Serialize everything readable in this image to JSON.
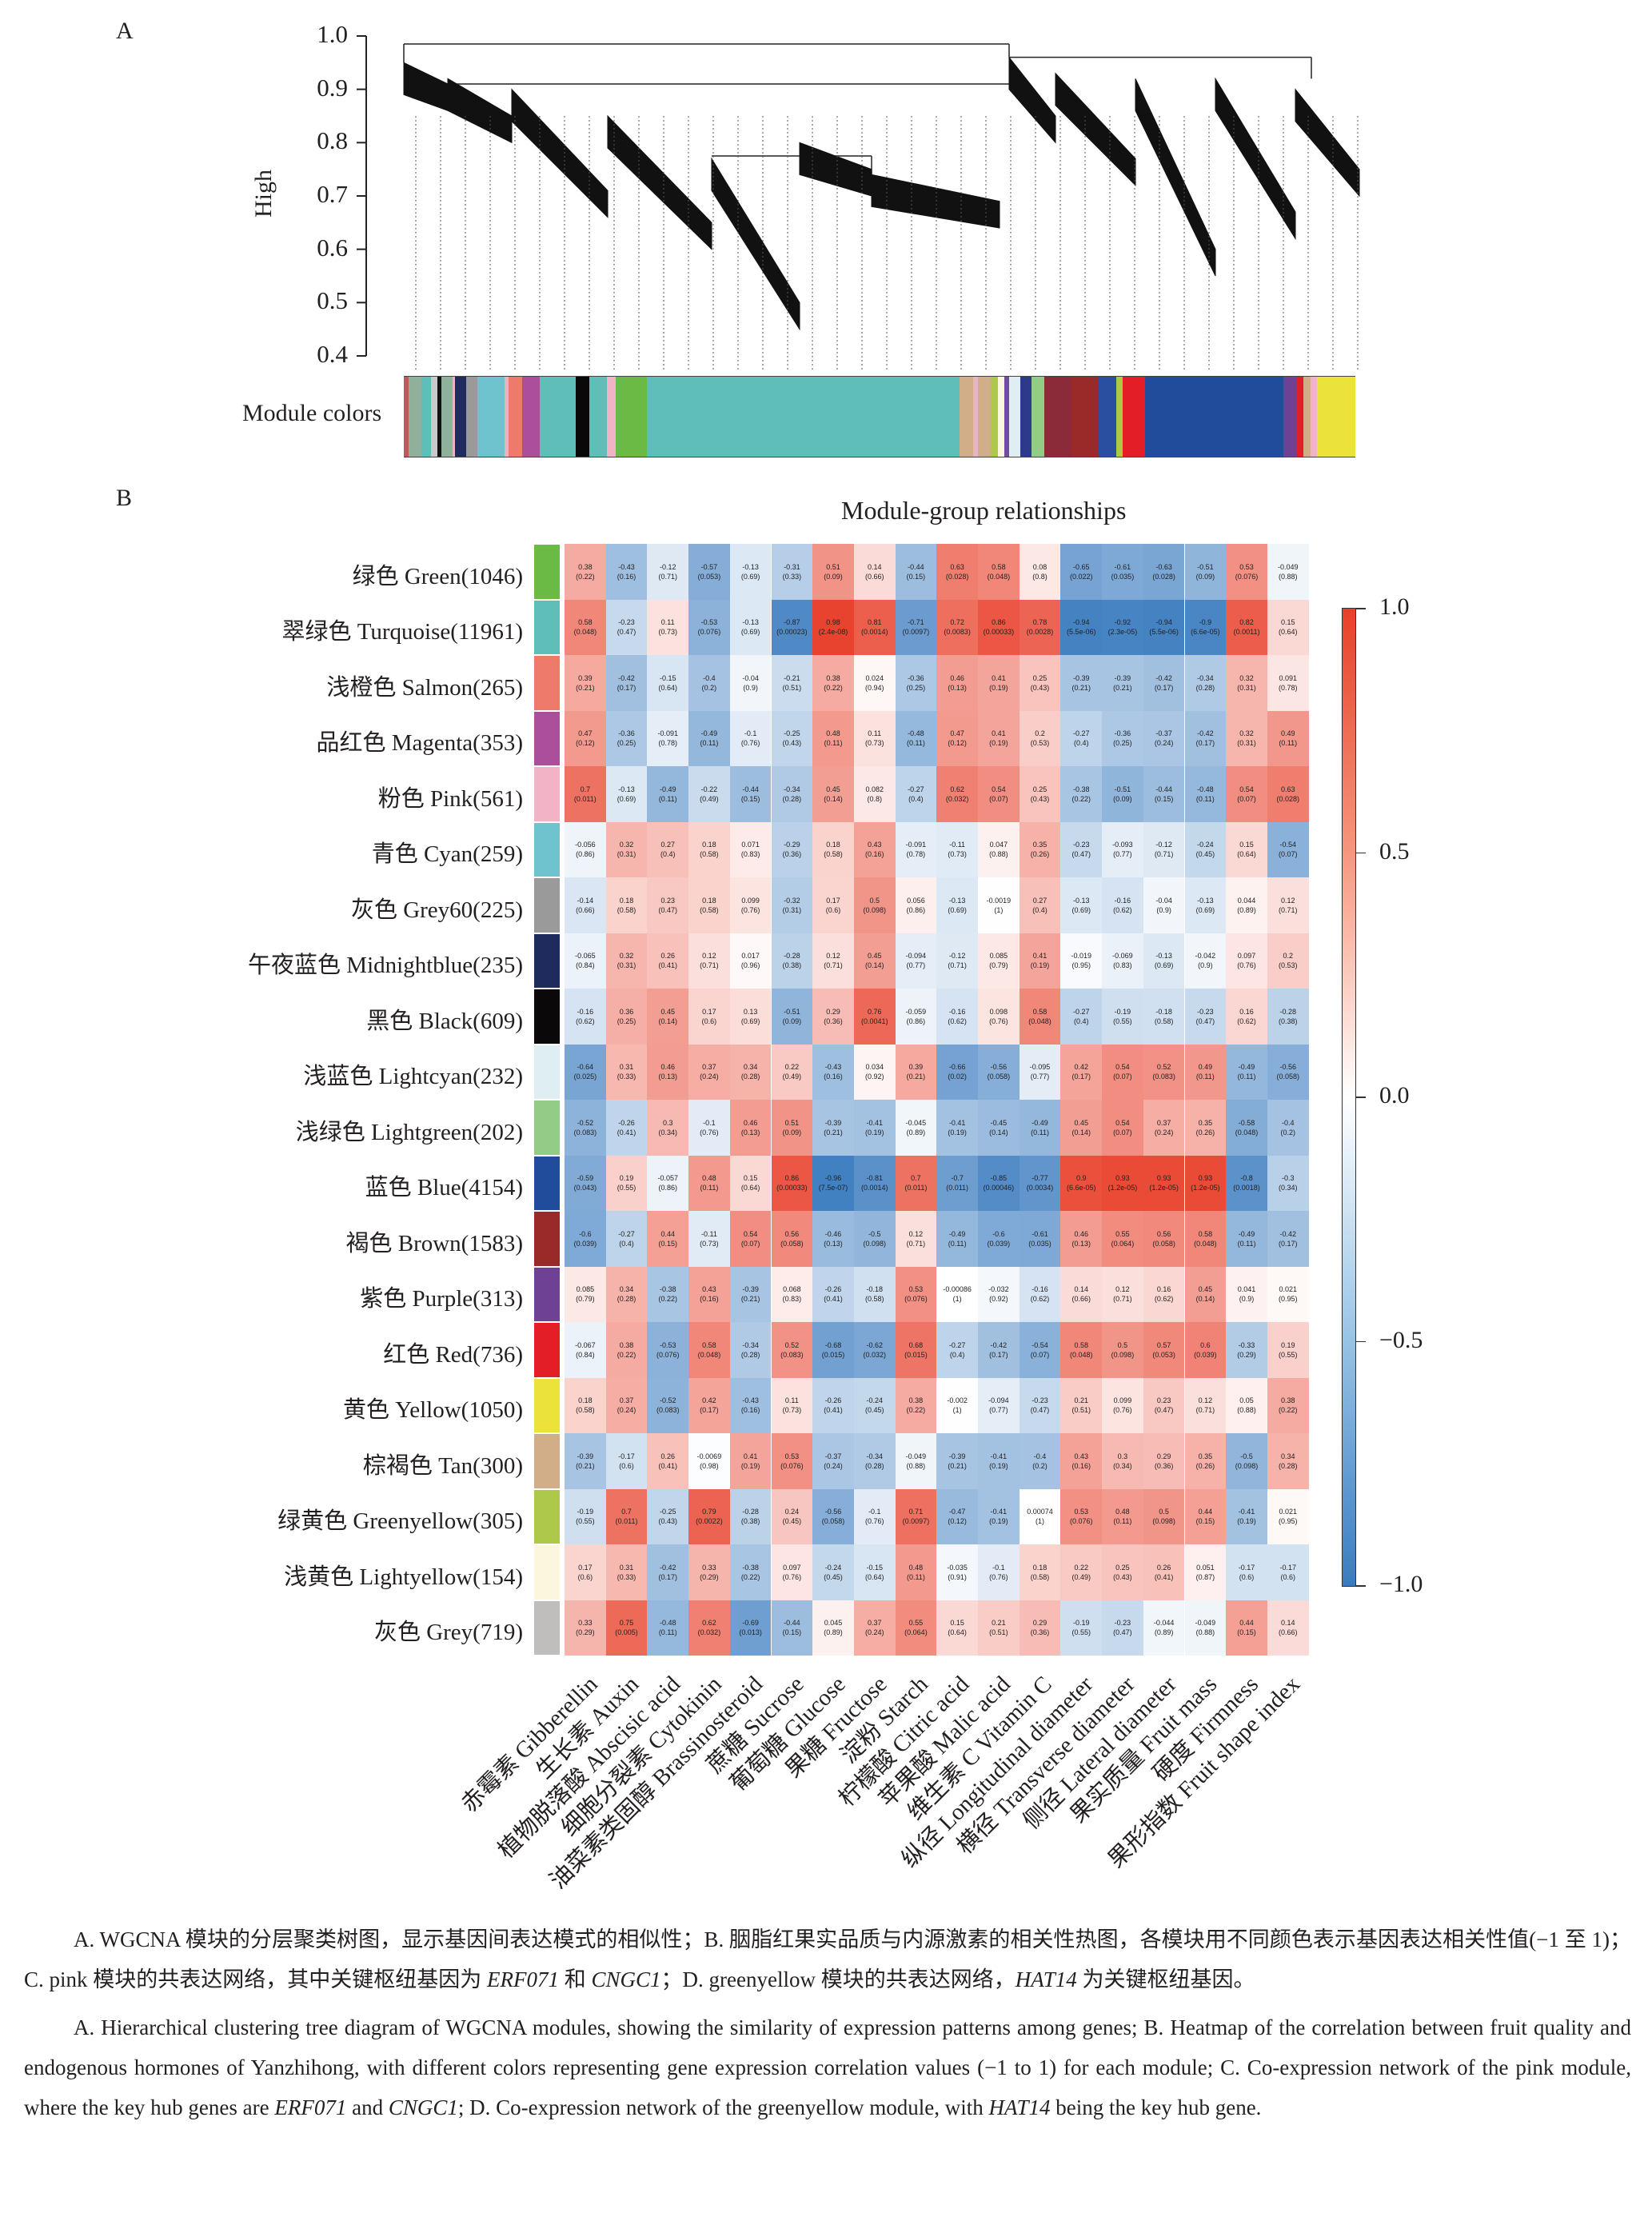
{
  "panel_a": {
    "letter": "A",
    "ylabel": "High",
    "yticks": [
      "1.0",
      "0.9",
      "0.8",
      "0.7",
      "0.6",
      "0.5",
      "0.4"
    ],
    "module_colors_label": "Module colors",
    "module_color_strip": [
      "#c0595a",
      "#8fb09a",
      "#5fbfb8",
      "#c9c9c9",
      "#111111",
      "#8fb09a",
      "#e8b4c4",
      "#1f2b5c",
      "#9a9a9a",
      "#6ec3cf",
      "#e8b4c4",
      "#ee7a6c",
      "#ac4f9a",
      "#5fbfb8",
      "#0a0808",
      "#5fbfb8",
      "#f2b3c6",
      "#6bba45",
      "#5fbfb8",
      "#d1ad88",
      "#e8b4c4",
      "#d1ad88",
      "#aec94a",
      "#fbf7df",
      "#6f4ca0",
      "#dfeef2",
      "#2d3a8c",
      "#93cc86",
      "#8b2a38",
      "#9a2a2a",
      "#2a4ea0",
      "#aec94a",
      "#e41e26",
      "#214c9b",
      "#6f4195",
      "#e41e26",
      "#d1ad88",
      "#f2b3c6",
      "#ebe33a"
    ],
    "module_color_weights": [
      2,
      6,
      4,
      3,
      2,
      5,
      1,
      5,
      5,
      12,
      2,
      6,
      8,
      16,
      6,
      8,
      4,
      14,
      140,
      6,
      2,
      6,
      3,
      3,
      2,
      5,
      5,
      6,
      12,
      12,
      8,
      3,
      10,
      62,
      6,
      3,
      3,
      3,
      17
    ]
  },
  "panel_b": {
    "letter": "B",
    "colorbar": {
      "ticks": [
        "1.0",
        "0.5",
        "0.0",
        "−0.5",
        "−1.0"
      ],
      "range": [
        -1,
        1
      ],
      "neg_color": "#3a7bbf",
      "zero_color": "#ffffff",
      "pos_color": "#e8402a"
    }
  },
  "chart_data": {
    "type": "heatmap",
    "title": "Module-group relationships",
    "xlabel": "",
    "ylabel": "",
    "value_range": [
      -1,
      1
    ],
    "columns": [
      "赤霉素 Gibberellin",
      "生长素 Auxin",
      "植物脱落酸 Abscisic acid",
      "细胞分裂素 Cytokinin",
      "油菜素类固醇 Brassinosteroid",
      "蔗糖 Sucrose",
      "葡萄糖 Glucose",
      "果糖 Fructose",
      "淀粉 Starch",
      "柠檬酸 Citric acid",
      "苹果酸 Malic acid",
      "维生素 C Vitamin C",
      "纵径 Longitudinal diameter",
      "横径 Transverse diameter",
      "侧径 Lateral diameter",
      "果实质量 Fruit mass",
      "硬度 Firmness",
      "果形指数 Fruit shape index"
    ],
    "rows": [
      {
        "label": "绿色 Green(1046)",
        "color": "#6bba45",
        "r": [
          "0.38",
          "-0.43",
          "-0.12",
          "-0.57",
          "-0.13",
          "-0.31",
          "0.51",
          "0.14",
          "-0.44",
          "0.63",
          "0.58",
          "0.08",
          "-0.65",
          "-0.61",
          "-0.63",
          "-0.51",
          "0.53",
          "-0.049"
        ],
        "p": [
          "0.22",
          "0.16",
          "0.71",
          "0.053",
          "0.69",
          "0.33",
          "0.09",
          "0.66",
          "0.15",
          "0.028",
          "0.048",
          "0.8",
          "0.022",
          "0.035",
          "0.028",
          "0.09",
          "0.076",
          "0.88"
        ]
      },
      {
        "label": "翠绿色 Turquoise(11961)",
        "color": "#5fbfb8",
        "r": [
          "0.58",
          "-0.23",
          "0.11",
          "-0.53",
          "-0.13",
          "-0.87",
          "0.98",
          "0.81",
          "-0.71",
          "0.72",
          "0.86",
          "0.78",
          "-0.94",
          "-0.92",
          "-0.94",
          "-0.9",
          "0.82",
          "0.15"
        ],
        "p": [
          "0.048",
          "0.47",
          "0.73",
          "0.076",
          "0.69",
          "0.00023",
          "2.4e-08",
          "0.0014",
          "0.0097",
          "0.0083",
          "0.00033",
          "0.0028",
          "5.5e-06",
          "2.3e-05",
          "5.5e-06",
          "6.6e-05",
          "0.0011",
          "0.64"
        ]
      },
      {
        "label": "浅橙色 Salmon(265)",
        "color": "#ee7a6c",
        "r": [
          "0.39",
          "-0.42",
          "-0.15",
          "-0.4",
          "-0.04",
          "-0.21",
          "0.38",
          "0.024",
          "-0.36",
          "0.46",
          "0.41",
          "0.25",
          "-0.39",
          "-0.39",
          "-0.42",
          "-0.34",
          "0.32",
          "0.091"
        ],
        "p": [
          "0.21",
          "0.17",
          "0.64",
          "0.2",
          "0.9",
          "0.51",
          "0.22",
          "0.94",
          "0.25",
          "0.13",
          "0.19",
          "0.43",
          "0.21",
          "0.21",
          "0.17",
          "0.28",
          "0.31",
          "0.78"
        ]
      },
      {
        "label": "品红色 Magenta(353)",
        "color": "#ac4f9a",
        "r": [
          "0.47",
          "-0.36",
          "-0.091",
          "-0.49",
          "-0.1",
          "-0.25",
          "0.48",
          "0.11",
          "-0.48",
          "0.47",
          "0.41",
          "0.2",
          "-0.27",
          "-0.36",
          "-0.37",
          "-0.42",
          "0.32",
          "0.49"
        ],
        "p": [
          "0.12",
          "0.25",
          "0.78",
          "0.11",
          "0.76",
          "0.43",
          "0.11",
          "0.73",
          "0.11",
          "0.12",
          "0.19",
          "0.53",
          "0.4",
          "0.25",
          "0.24",
          "0.17",
          "0.31",
          "0.11"
        ]
      },
      {
        "label": "粉色 Pink(561)",
        "color": "#f2b3c6",
        "r": [
          "0.7",
          "-0.13",
          "-0.49",
          "-0.22",
          "-0.44",
          "-0.34",
          "0.45",
          "0.082",
          "-0.27",
          "0.62",
          "0.54",
          "0.25",
          "-0.38",
          "-0.51",
          "-0.44",
          "-0.48",
          "0.54",
          "0.63"
        ],
        "p": [
          "0.011",
          "0.69",
          "0.11",
          "0.49",
          "0.15",
          "0.28",
          "0.14",
          "0.8",
          "0.4",
          "0.032",
          "0.07",
          "0.43",
          "0.22",
          "0.09",
          "0.15",
          "0.11",
          "0.07",
          "0.028"
        ]
      },
      {
        "label": "青色 Cyan(259)",
        "color": "#6ec3cf",
        "r": [
          "-0.056",
          "0.32",
          "0.27",
          "0.18",
          "0.071",
          "-0.29",
          "0.18",
          "0.43",
          "-0.091",
          "-0.11",
          "0.047",
          "0.35",
          "-0.23",
          "-0.093",
          "-0.12",
          "-0.24",
          "0.15",
          "-0.54"
        ],
        "p": [
          "0.86",
          "0.31",
          "0.4",
          "0.58",
          "0.83",
          "0.36",
          "0.58",
          "0.16",
          "0.78",
          "0.73",
          "0.88",
          "0.26",
          "0.47",
          "0.77",
          "0.71",
          "0.45",
          "0.64",
          "0.07"
        ]
      },
      {
        "label": "灰色 Grey60(225)",
        "color": "#9a9a9a",
        "r": [
          "-0.14",
          "0.18",
          "0.23",
          "0.18",
          "0.099",
          "-0.32",
          "0.17",
          "0.5",
          "0.056",
          "-0.13",
          "-0.0019",
          "0.27",
          "-0.13",
          "-0.16",
          "-0.04",
          "-0.13",
          "0.044",
          "0.12"
        ],
        "p": [
          "0.66",
          "0.58",
          "0.47",
          "0.58",
          "0.76",
          "0.31",
          "0.6",
          "0.098",
          "0.86",
          "0.69",
          "1",
          "0.4",
          "0.69",
          "0.62",
          "0.9",
          "0.69",
          "0.89",
          "0.71"
        ]
      },
      {
        "label": "午夜蓝色 Midnightblue(235)",
        "color": "#1f2b5c",
        "r": [
          "-0.065",
          "0.32",
          "0.26",
          "0.12",
          "0.017",
          "-0.28",
          "0.12",
          "0.45",
          "-0.094",
          "-0.12",
          "0.085",
          "0.41",
          "-0.019",
          "-0.069",
          "-0.13",
          "-0.042",
          "0.097",
          "0.2"
        ],
        "p": [
          "0.84",
          "0.31",
          "0.41",
          "0.71",
          "0.96",
          "0.38",
          "0.71",
          "0.14",
          "0.77",
          "0.71",
          "0.79",
          "0.19",
          "0.95",
          "0.83",
          "0.69",
          "0.9",
          "0.76",
          "0.53"
        ]
      },
      {
        "label": "黑色 Black(609)",
        "color": "#0a0808",
        "r": [
          "-0.16",
          "0.36",
          "0.45",
          "0.17",
          "0.13",
          "-0.51",
          "0.29",
          "0.76",
          "-0.059",
          "-0.16",
          "0.098",
          "0.58",
          "-0.27",
          "-0.19",
          "-0.18",
          "-0.23",
          "0.16",
          "-0.28"
        ],
        "p": [
          "0.62",
          "0.25",
          "0.14",
          "0.6",
          "0.69",
          "0.09",
          "0.36",
          "0.0041",
          "0.86",
          "0.62",
          "0.76",
          "0.048",
          "0.4",
          "0.55",
          "0.58",
          "0.47",
          "0.62",
          "0.38"
        ]
      },
      {
        "label": "浅蓝色 Lightcyan(232)",
        "color": "#dfeef2",
        "r": [
          "-0.64",
          "0.31",
          "0.46",
          "0.37",
          "0.34",
          "0.22",
          "-0.43",
          "0.034",
          "0.39",
          "-0.66",
          "-0.56",
          "-0.095",
          "0.42",
          "0.54",
          "0.52",
          "0.49",
          "-0.49",
          "-0.56"
        ],
        "p": [
          "0.025",
          "0.33",
          "0.13",
          "0.24",
          "0.28",
          "0.49",
          "0.16",
          "0.92",
          "0.21",
          "0.02",
          "0.058",
          "0.77",
          "0.17",
          "0.07",
          "0.083",
          "0.11",
          "0.11",
          "0.058"
        ]
      },
      {
        "label": "浅绿色 Lightgreen(202)",
        "color": "#93cc86",
        "r": [
          "-0.52",
          "-0.26",
          "0.3",
          "-0.1",
          "0.46",
          "0.51",
          "-0.39",
          "-0.41",
          "-0.045",
          "-0.41",
          "-0.45",
          "-0.49",
          "0.45",
          "0.54",
          "0.37",
          "0.35",
          "-0.58",
          "-0.4"
        ],
        "p": [
          "0.083",
          "0.41",
          "0.34",
          "0.76",
          "0.13",
          "0.09",
          "0.21",
          "0.19",
          "0.89",
          "0.19",
          "0.14",
          "0.11",
          "0.14",
          "0.07",
          "0.24",
          "0.26",
          "0.048",
          "0.2"
        ]
      },
      {
        "label": "蓝色 Blue(4154)",
        "color": "#214c9b",
        "r": [
          "-0.59",
          "0.19",
          "-0.057",
          "0.48",
          "0.15",
          "0.86",
          "-0.96",
          "-0.81",
          "0.7",
          "-0.7",
          "-0.85",
          "-0.77",
          "0.9",
          "0.93",
          "0.93",
          "0.93",
          "-0.8",
          "-0.3"
        ],
        "p": [
          "0.043",
          "0.55",
          "0.86",
          "0.11",
          "0.64",
          "0.00033",
          "7.5e-07",
          "0.0014",
          "0.011",
          "0.011",
          "0.00046",
          "0.0034",
          "6.6e-05",
          "1.2e-05",
          "1.2e-05",
          "1.2e-05",
          "0.0018",
          "0.34"
        ]
      },
      {
        "label": "褐色 Brown(1583)",
        "color": "#9a2a2a",
        "r": [
          "-0.6",
          "-0.27",
          "0.44",
          "-0.11",
          "0.54",
          "0.56",
          "-0.46",
          "-0.5",
          "0.12",
          "-0.49",
          "-0.6",
          "-0.61",
          "0.46",
          "0.55",
          "0.56",
          "0.58",
          "-0.49",
          "-0.42"
        ],
        "p": [
          "0.039",
          "0.4",
          "0.15",
          "0.73",
          "0.07",
          "0.058",
          "0.13",
          "0.098",
          "0.71",
          "0.11",
          "0.039",
          "0.035",
          "0.13",
          "0.064",
          "0.058",
          "0.048",
          "0.11",
          "0.17"
        ]
      },
      {
        "label": "紫色 Purple(313)",
        "color": "#6f4195",
        "r": [
          "0.085",
          "0.34",
          "-0.38",
          "0.43",
          "-0.39",
          "0.068",
          "-0.26",
          "-0.18",
          "0.53",
          "-0.00086",
          "-0.032",
          "-0.16",
          "0.14",
          "0.12",
          "0.16",
          "0.45",
          "0.041",
          "0.021"
        ],
        "p": [
          "0.79",
          "0.28",
          "0.22",
          "0.16",
          "0.21",
          "0.83",
          "0.41",
          "0.58",
          "0.076",
          "1",
          "0.92",
          "0.62",
          "0.66",
          "0.71",
          "0.62",
          "0.14",
          "0.9",
          "0.95"
        ]
      },
      {
        "label": "红色 Red(736)",
        "color": "#e41e26",
        "r": [
          "-0.067",
          "0.38",
          "-0.53",
          "0.58",
          "-0.34",
          "0.52",
          "-0.68",
          "-0.62",
          "0.68",
          "-0.27",
          "-0.42",
          "-0.54",
          "0.58",
          "0.5",
          "0.57",
          "0.6",
          "-0.33",
          "0.19"
        ],
        "p": [
          "0.84",
          "0.22",
          "0.076",
          "0.048",
          "0.28",
          "0.083",
          "0.015",
          "0.032",
          "0.015",
          "0.4",
          "0.17",
          "0.07",
          "0.048",
          "0.098",
          "0.053",
          "0.039",
          "0.29",
          "0.55"
        ]
      },
      {
        "label": "黄色 Yellow(1050)",
        "color": "#ebe33a",
        "r": [
          "0.18",
          "0.37",
          "-0.52",
          "0.42",
          "-0.43",
          "0.11",
          "-0.26",
          "-0.24",
          "0.38",
          "-0.002",
          "-0.094",
          "-0.23",
          "0.21",
          "0.099",
          "0.23",
          "0.12",
          "0.05",
          "0.38"
        ],
        "p": [
          "0.58",
          "0.24",
          "0.083",
          "0.17",
          "0.16",
          "0.73",
          "0.41",
          "0.45",
          "0.22",
          "1",
          "0.77",
          "0.47",
          "0.51",
          "0.76",
          "0.47",
          "0.71",
          "0.88",
          "0.22"
        ]
      },
      {
        "label": "棕褐色 Tan(300)",
        "color": "#d1ad88",
        "r": [
          "-0.39",
          "-0.17",
          "0.26",
          "-0.0069",
          "0.41",
          "0.53",
          "-0.37",
          "-0.34",
          "-0.049",
          "-0.39",
          "-0.41",
          "-0.4",
          "0.43",
          "0.3",
          "0.29",
          "0.35",
          "-0.5",
          "0.34"
        ],
        "p": [
          "0.21",
          "0.6",
          "0.41",
          "0.98",
          "0.19",
          "0.076",
          "0.24",
          "0.28",
          "0.88",
          "0.21",
          "0.19",
          "0.2",
          "0.16",
          "0.34",
          "0.36",
          "0.26",
          "0.098",
          "0.28"
        ]
      },
      {
        "label": "绿黄色 Greenyellow(305)",
        "color": "#aec94a",
        "r": [
          "-0.19",
          "0.7",
          "-0.25",
          "0.79",
          "-0.28",
          "0.24",
          "-0.56",
          "-0.1",
          "0.71",
          "-0.47",
          "-0.41",
          "0.00074",
          "0.53",
          "0.48",
          "0.5",
          "0.44",
          "-0.41",
          "0.021"
        ],
        "p": [
          "0.55",
          "0.011",
          "0.43",
          "0.0022",
          "0.38",
          "0.45",
          "0.058",
          "0.76",
          "0.0097",
          "0.12",
          "0.19",
          "1",
          "0.076",
          "0.11",
          "0.098",
          "0.15",
          "0.19",
          "0.95"
        ]
      },
      {
        "label": "浅黄色 Lightyellow(154)",
        "color": "#fbf7df",
        "r": [
          "0.17",
          "0.31",
          "-0.42",
          "0.33",
          "-0.38",
          "0.097",
          "-0.24",
          "-0.15",
          "0.48",
          "-0.035",
          "-0.1",
          "0.18",
          "0.22",
          "0.25",
          "0.26",
          "0.051",
          "-0.17",
          "-0.17"
        ],
        "p": [
          "0.6",
          "0.33",
          "0.17",
          "0.29",
          "0.22",
          "0.76",
          "0.45",
          "0.64",
          "0.11",
          "0.91",
          "0.76",
          "0.58",
          "0.49",
          "0.43",
          "0.41",
          "0.87",
          "0.6",
          "0.6"
        ]
      },
      {
        "label": "灰色 Grey(719)",
        "color": "#c0bdbd",
        "r": [
          "0.33",
          "0.75",
          "-0.48",
          "0.62",
          "-0.69",
          "-0.44",
          "0.045",
          "0.37",
          "0.55",
          "0.15",
          "0.21",
          "0.29",
          "-0.19",
          "-0.23",
          "-0.044",
          "-0.049",
          "0.44",
          "0.14"
        ],
        "p": [
          "0.29",
          "0.005",
          "0.11",
          "0.032",
          "0.013",
          "0.15",
          "0.89",
          "0.24",
          "0.064",
          "0.64",
          "0.51",
          "0.36",
          "0.55",
          "0.47",
          "0.89",
          "0.88",
          "0.15",
          "0.66"
        ]
      }
    ]
  },
  "caption": {
    "zh_1": "A. WGCNA 模块的分层聚类树图，显示基因间表达模式的相似性；B. 胭脂红果实品质与内源激素的相关性热图，各模块用不同颜色表示基因表达相关性值(−1 至 1)；C. pink 模块的共表达网络，其中关键枢纽基因为 ",
    "zh_gene1": "ERF071",
    "zh_2": " 和 ",
    "zh_gene2": "CNGC1",
    "zh_3": "；D. greenyellow 模块的共表达网络，",
    "zh_gene3": "HAT14",
    "zh_4": " 为关键枢纽基因。",
    "en_1": "A. Hierarchical clustering tree diagram of WGCNA modules, showing the similarity of expression patterns among genes; B. Heatmap of the correlation between fruit quality and endogenous hormones of Yanzhihong, with different colors representing gene expression correlation values (−1 to 1) for each module; C. Co-expression network of the pink module, where the key hub genes are ",
    "en_gene1": "ERF071",
    "en_2": " and ",
    "en_gene2": "CNGC1",
    "en_3": "; D. Co-expression network of the greenyellow module, with ",
    "en_gene3": "HAT14",
    "en_4": " being the key hub gene."
  }
}
